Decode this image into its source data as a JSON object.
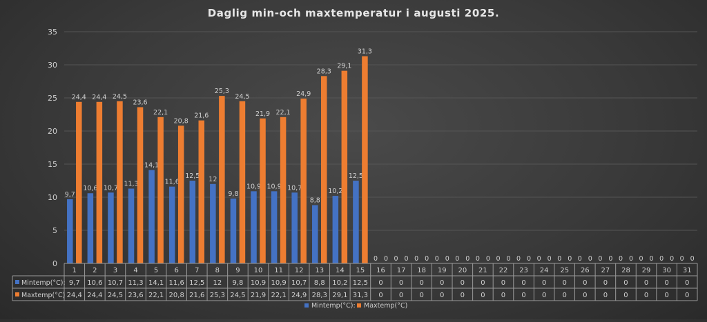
{
  "chart_data": {
    "type": "bar",
    "title": "Daglig min-och maxtemperatur i augusti 2025.",
    "categories": [
      "1",
      "2",
      "3",
      "4",
      "5",
      "6",
      "7",
      "8",
      "9",
      "10",
      "11",
      "12",
      "13",
      "14",
      "15",
      "16",
      "17",
      "18",
      "19",
      "20",
      "21",
      "22",
      "23",
      "24",
      "25",
      "26",
      "27",
      "28",
      "29",
      "30",
      "31"
    ],
    "series": [
      {
        "name": "Mintemp(°C):",
        "color": "#4472C4",
        "values": [
          9.7,
          10.6,
          10.7,
          11.3,
          14.1,
          11.6,
          12.5,
          12,
          9.8,
          10.9,
          10.9,
          10.7,
          8.8,
          10.2,
          12.5,
          0,
          0,
          0,
          0,
          0,
          0,
          0,
          0,
          0,
          0,
          0,
          0,
          0,
          0,
          0,
          0
        ],
        "labels": [
          "9,7",
          "10,6",
          "10,7",
          "11,3",
          "14,1",
          "11,6",
          "12,5",
          "12",
          "9,8",
          "10,9",
          "10,9",
          "10,7",
          "8,8",
          "10,2",
          "12,5",
          "0",
          "0",
          "0",
          "0",
          "0",
          "0",
          "0",
          "0",
          "0",
          "0",
          "0",
          "0",
          "0",
          "0",
          "0",
          "0"
        ]
      },
      {
        "name": "Maxtemp(°C)",
        "color": "#ED7D31",
        "values": [
          24.4,
          24.4,
          24.5,
          23.6,
          22.1,
          20.8,
          21.6,
          25.3,
          24.5,
          21.9,
          22.1,
          24.9,
          28.3,
          29.1,
          31.3,
          0,
          0,
          0,
          0,
          0,
          0,
          0,
          0,
          0,
          0,
          0,
          0,
          0,
          0,
          0,
          0
        ],
        "labels": [
          "24,4",
          "24,4",
          "24,5",
          "23,6",
          "22,1",
          "20,8",
          "21,6",
          "25,3",
          "24,5",
          "21,9",
          "22,1",
          "24,9",
          "28,3",
          "29,1",
          "31,3",
          "0",
          "0",
          "0",
          "0",
          "0",
          "0",
          "0",
          "0",
          "0",
          "0",
          "0",
          "0",
          "0",
          "0",
          "0",
          "0"
        ]
      }
    ],
    "yticks": [
      "0",
      "5",
      "10",
      "15",
      "20",
      "25",
      "30",
      "35"
    ],
    "ylim": [
      0,
      35
    ],
    "legend": "bottom",
    "grid": true,
    "data_table": true
  }
}
